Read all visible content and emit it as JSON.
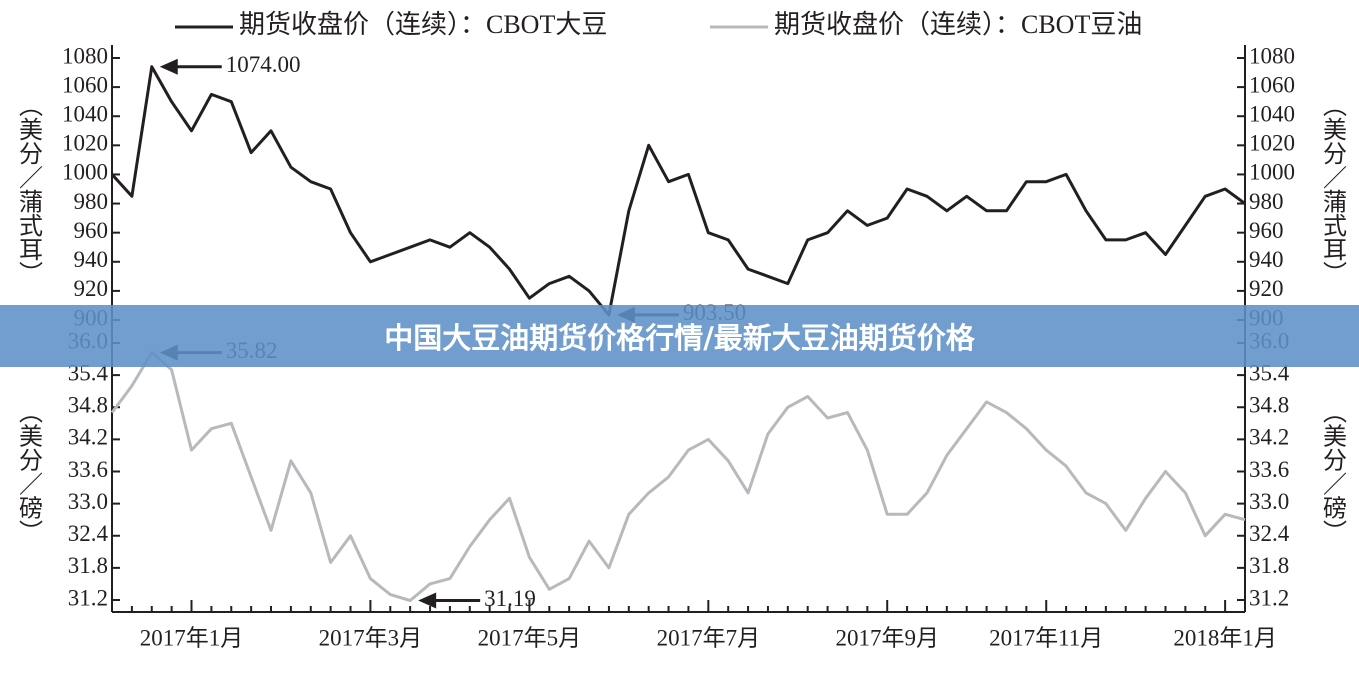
{
  "banner": "中国大豆油期货价格行情/最新大豆油期货价格",
  "chart_data": [
    {
      "type": "line",
      "y_label": "（美分／蒲式耳）",
      "ylim": [
        900,
        1080
      ],
      "yticks": [
        900,
        920,
        940,
        960,
        980,
        1000,
        1020,
        1040,
        1060,
        1080
      ],
      "annotations": [
        "1074.00",
        "903.50"
      ],
      "series": [
        {
          "name": "期货收盘价（连续）：CBOT大豆",
          "color": "#231f20",
          "values": [
            1000,
            985,
            1074,
            1050,
            1030,
            1055,
            1050,
            1015,
            1030,
            1005,
            995,
            990,
            960,
            940,
            945,
            950,
            955,
            950,
            960,
            950,
            935,
            915,
            925,
            930,
            920,
            903.5,
            975,
            1020,
            995,
            1000,
            960,
            955,
            935,
            930,
            925,
            955,
            960,
            975,
            965,
            970,
            990,
            985,
            975,
            985,
            975,
            975,
            995,
            995,
            1000,
            975,
            955,
            955,
            960,
            945,
            965,
            985,
            990,
            980
          ]
        }
      ]
    },
    {
      "type": "line",
      "y_label": "（美分／磅）",
      "ylim": [
        31.2,
        36
      ],
      "yticks": [
        31.2,
        31.8,
        32.4,
        {
          "value": 33,
          "label": "33.0"
        },
        33.6,
        34.2,
        34.8,
        35.4,
        {
          "value": 36,
          "label": "36.0"
        }
      ],
      "annotations": [
        "35.82",
        "31.19"
      ],
      "categories": [
        null,
        null,
        null,
        null,
        "2017年1月",
        null,
        null,
        null,
        null,
        null,
        null,
        null,
        null,
        "2017年3月",
        null,
        null,
        null,
        null,
        null,
        null,
        null,
        "2017年5月",
        null,
        null,
        null,
        null,
        null,
        null,
        null,
        null,
        "2017年7月",
        null,
        null,
        null,
        null,
        null,
        null,
        null,
        null,
        "2017年9月",
        null,
        null,
        null,
        null,
        null,
        null,
        null,
        "2017年11月",
        null,
        null,
        null,
        null,
        null,
        null,
        null,
        null,
        "2018年1月",
        null
      ],
      "series": [
        {
          "name": "期货收盘价（连续）：CBOT豆油",
          "color": "#b8b9bd",
          "values": [
            34.7,
            35.2,
            35.82,
            35.5,
            34.0,
            34.4,
            34.5,
            33.5,
            32.5,
            33.8,
            33.2,
            31.9,
            32.4,
            31.6,
            31.3,
            31.19,
            31.5,
            31.6,
            32.2,
            32.7,
            33.1,
            32.0,
            31.4,
            31.6,
            32.3,
            31.8,
            32.8,
            33.2,
            33.5,
            34.0,
            34.2,
            33.8,
            33.2,
            34.3,
            34.8,
            35.0,
            34.6,
            34.7,
            34.0,
            32.8,
            32.8,
            33.2,
            33.9,
            34.4,
            34.9,
            34.7,
            34.4,
            34.0,
            33.7,
            33.2,
            33.0,
            32.5,
            33.1,
            33.6,
            33.2,
            32.4,
            32.8,
            32.7
          ]
        }
      ]
    }
  ]
}
